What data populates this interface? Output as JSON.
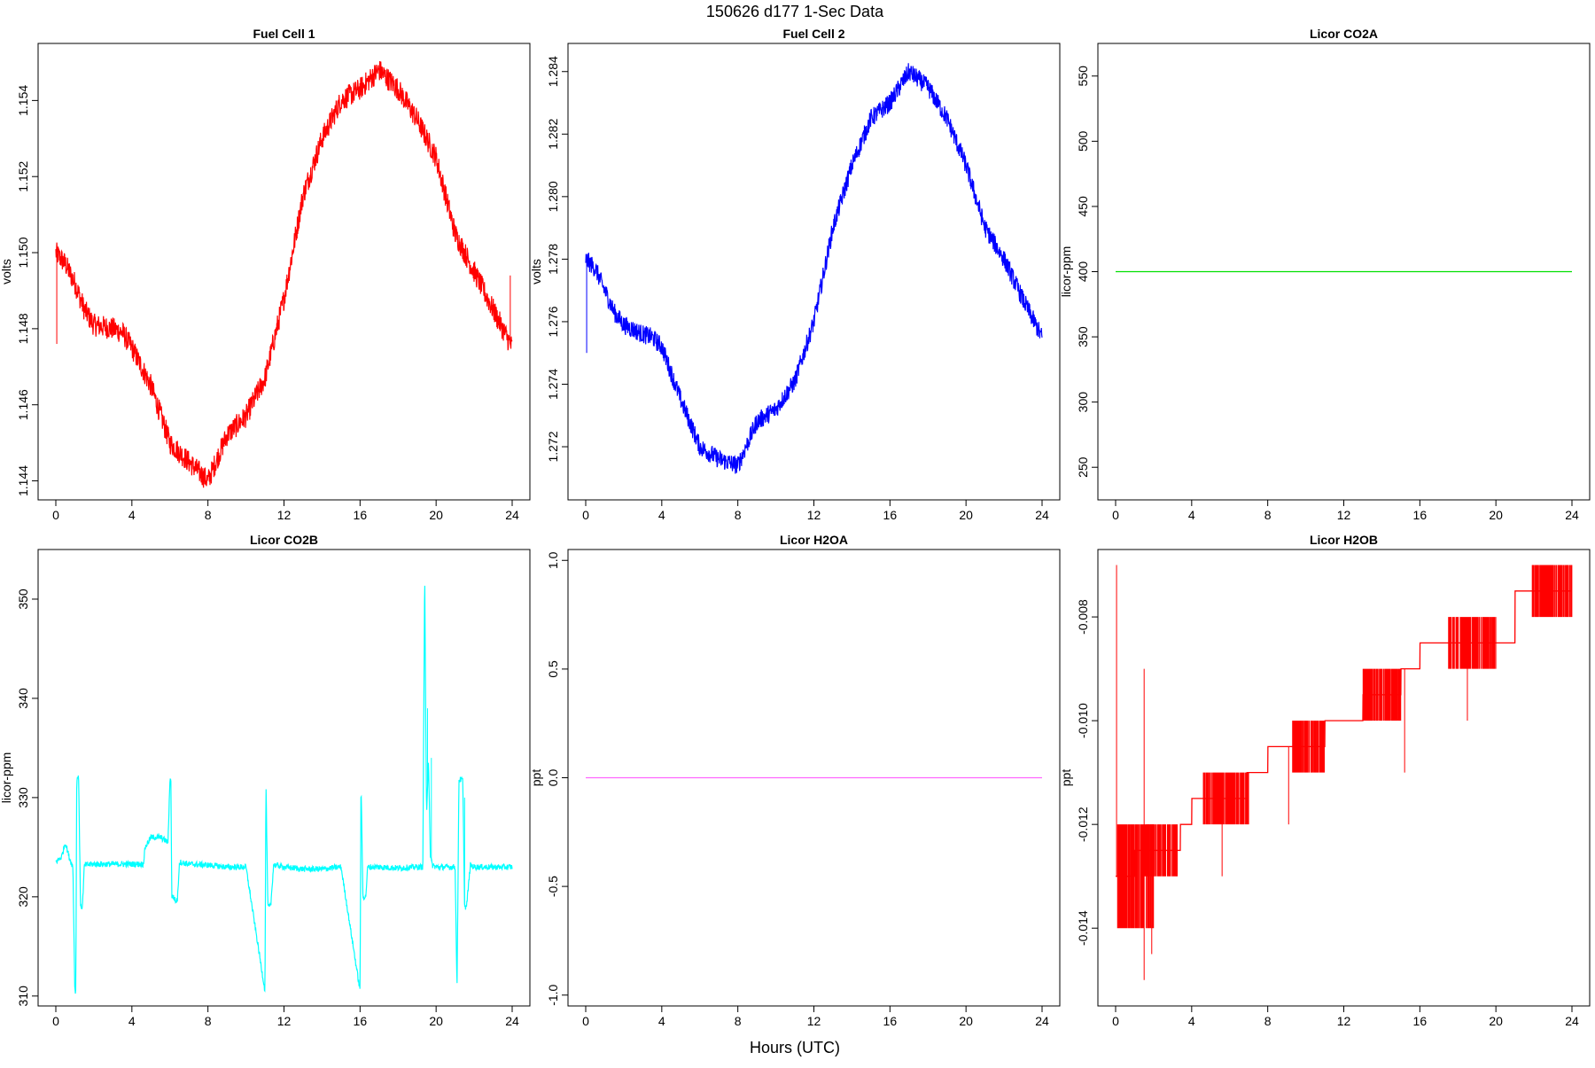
{
  "title": "150626   d177   1-Sec Data",
  "xlabel": "Hours (UTC)",
  "chart_data": [
    {
      "type": "line",
      "title": "Fuel Cell 1",
      "ylabel": "volts",
      "color": "#ff0000",
      "xlim": [
        0,
        24
      ],
      "ylim": [
        1.1435,
        1.1555
      ],
      "xticks": [
        0,
        4,
        8,
        12,
        16,
        20,
        24
      ],
      "yticks": [
        1.144,
        1.146,
        1.148,
        1.15,
        1.152,
        1.154
      ],
      "ytick_labels": [
        "1.144",
        "1.146",
        "1.148",
        "1.150",
        "1.152",
        "1.154"
      ],
      "noise": 0.0003,
      "x": [
        0,
        0.5,
        1,
        1.5,
        2,
        3,
        3.5,
        4,
        5,
        6,
        7,
        8,
        8.5,
        9,
        10,
        11,
        12,
        13,
        14,
        15,
        16,
        17,
        18,
        19,
        20,
        21,
        22,
        23,
        24
      ],
      "y": [
        1.15,
        1.1497,
        1.1492,
        1.1485,
        1.1481,
        1.148,
        1.1479,
        1.1475,
        1.1465,
        1.145,
        1.1445,
        1.144,
        1.1446,
        1.1452,
        1.1457,
        1.1467,
        1.1488,
        1.1515,
        1.153,
        1.154,
        1.1543,
        1.1548,
        1.1543,
        1.1535,
        1.1525,
        1.1505,
        1.1495,
        1.1485,
        1.1475
      ],
      "spikes": [
        {
          "x": 0.05,
          "y": 1.1476
        },
        {
          "x": 23.9,
          "y": 1.1494
        }
      ]
    },
    {
      "type": "line",
      "title": "Fuel Cell 2",
      "ylabel": "volts",
      "color": "#0000ff",
      "xlim": [
        0,
        24
      ],
      "ylim": [
        1.2703,
        1.2849
      ],
      "xticks": [
        0,
        4,
        8,
        12,
        16,
        20,
        24
      ],
      "yticks": [
        1.272,
        1.274,
        1.276,
        1.278,
        1.28,
        1.282,
        1.284
      ],
      "ytick_labels": [
        "1.272",
        "1.274",
        "1.276",
        "1.278",
        "1.280",
        "1.282",
        "1.284"
      ],
      "noise": 0.0003,
      "x": [
        0,
        0.5,
        1,
        1.5,
        2,
        3,
        3.5,
        4,
        5,
        6,
        7,
        8,
        8.5,
        9,
        10,
        11,
        12,
        13,
        14,
        15,
        16,
        17,
        18,
        19,
        20,
        21,
        22,
        23,
        24
      ],
      "y": [
        1.278,
        1.2777,
        1.277,
        1.2763,
        1.2759,
        1.2756,
        1.2755,
        1.2752,
        1.2735,
        1.272,
        1.2716,
        1.2714,
        1.2721,
        1.2728,
        1.2732,
        1.2741,
        1.276,
        1.279,
        1.281,
        1.2825,
        1.283,
        1.284,
        1.2835,
        1.2825,
        1.281,
        1.279,
        1.278,
        1.2767,
        1.2755
      ],
      "spikes": [
        {
          "x": 0.05,
          "y": 1.275
        }
      ]
    },
    {
      "type": "line",
      "title": "Licor CO2A",
      "ylabel": "licor-ppm",
      "color": "#00e000",
      "xlim": [
        0,
        24
      ],
      "ylim": [
        225,
        575
      ],
      "xticks": [
        0,
        4,
        8,
        12,
        16,
        20,
        24
      ],
      "yticks": [
        250,
        300,
        350,
        400,
        450,
        500,
        550
      ],
      "ytick_labels": [
        "250",
        "300",
        "350",
        "400",
        "450",
        "500",
        "550"
      ],
      "noise": 0,
      "x": [
        0,
        24
      ],
      "y": [
        400,
        400
      ],
      "spikes": []
    },
    {
      "type": "line",
      "title": "Licor CO2B",
      "ylabel": "licor-ppm",
      "color": "#00ffff",
      "xlim": [
        0,
        24
      ],
      "ylim": [
        309,
        355
      ],
      "xticks": [
        0,
        4,
        8,
        12,
        16,
        20,
        24
      ],
      "yticks": [
        310,
        320,
        330,
        340,
        350
      ],
      "ytick_labels": [
        "310",
        "320",
        "330",
        "340",
        "350"
      ],
      "noise": 0.3,
      "x": [
        0,
        0.3,
        0.5,
        0.7,
        0.9,
        1.0,
        1.05,
        1.1,
        1.2,
        1.3,
        1.4,
        1.5,
        2,
        3,
        4,
        4.6,
        4.7,
        5,
        5.5,
        5.9,
        6.0,
        6.05,
        6.1,
        6.2,
        6.3,
        6.4,
        6.5,
        7,
        8,
        9,
        10,
        11,
        11.05,
        11.15,
        11.3,
        11.45,
        11.5,
        12,
        13,
        14,
        15,
        16,
        16.05,
        16.15,
        16.3,
        16.4,
        17,
        18,
        19,
        19.3,
        19.4,
        19.45,
        19.5,
        19.6,
        19.7,
        19.8,
        20,
        21,
        21.1,
        21.2,
        21.4,
        21.5,
        21.6,
        21.8,
        22,
        23,
        24
      ],
      "y": [
        323.5,
        324,
        325.5,
        324,
        323,
        310.5,
        310.5,
        332,
        332,
        319,
        319,
        323.2,
        323.3,
        323.3,
        323.3,
        323.3,
        325,
        326,
        326,
        325.5,
        331.8,
        331.8,
        320,
        320,
        319.5,
        319.8,
        323.5,
        323.3,
        323.2,
        323.0,
        323.0,
        310.5,
        331.8,
        319,
        319,
        323.2,
        323.2,
        323.0,
        322.8,
        322.8,
        323.0,
        310.5,
        331.8,
        320,
        320,
        323.0,
        323.0,
        322.9,
        323.0,
        323.0,
        353,
        339,
        328,
        334,
        324,
        323.2,
        323.0,
        323.0,
        310.5,
        331.8,
        331.8,
        319,
        319,
        323.2,
        323.0,
        323.0,
        323.0
      ],
      "spikes": [
        {
          "x": 19.55,
          "y": 339
        },
        {
          "x": 19.75,
          "y": 334
        },
        {
          "x": 21.5,
          "y": 330
        }
      ]
    },
    {
      "type": "line",
      "title": "Licor H2OA",
      "ylabel": "ppt",
      "color": "#ff66ff",
      "xlim": [
        0,
        24
      ],
      "ylim": [
        -1.05,
        1.05
      ],
      "xticks": [
        0,
        4,
        8,
        12,
        16,
        20,
        24
      ],
      "yticks": [
        -1.0,
        -0.5,
        0.0,
        0.5,
        1.0
      ],
      "ytick_labels": [
        "-1.0",
        "-0.5",
        "0.0",
        "0.5",
        "1.0"
      ],
      "noise": 0,
      "x": [
        0,
        24
      ],
      "y": [
        0,
        0
      ],
      "spikes": []
    },
    {
      "type": "line",
      "title": "Licor H2OB",
      "ylabel": "ppt",
      "color": "#ff0000",
      "xlim": [
        0,
        24
      ],
      "ylim": [
        -0.0155,
        -0.0067
      ],
      "xticks": [
        0,
        4,
        8,
        12,
        16,
        20,
        24
      ],
      "yticks": [
        -0.014,
        -0.012,
        -0.01,
        -0.008
      ],
      "ytick_labels": [
        "-0.014",
        "-0.012",
        "-0.010",
        "-0.008"
      ],
      "noise": 0,
      "x": [
        0,
        1.0,
        1.01,
        3.4,
        3.41,
        4.0,
        4.01,
        6.9,
        6.91,
        8.0,
        8.01,
        11.0,
        11.01,
        13.0,
        13.01,
        15.0,
        15.01,
        16.0,
        16.01,
        21.0,
        21.01,
        24
      ],
      "y": [
        -0.013,
        -0.013,
        -0.0125,
        -0.0125,
        -0.012,
        -0.012,
        -0.0115,
        -0.0115,
        -0.011,
        -0.011,
        -0.0105,
        -0.0105,
        -0.01,
        -0.01,
        -0.0095,
        -0.0095,
        -0.009,
        -0.009,
        -0.0085,
        -0.0085,
        -0.0075,
        -0.0075
      ],
      "bands": [
        {
          "x0": 0.1,
          "x1": 2.0,
          "y0": -0.014,
          "y1": -0.012
        },
        {
          "x0": 1.5,
          "x1": 3.3,
          "y0": -0.013,
          "y1": -0.012
        },
        {
          "x0": 4.6,
          "x1": 7.0,
          "y0": -0.012,
          "y1": -0.011
        },
        {
          "x0": 9.3,
          "x1": 11.0,
          "y0": -0.011,
          "y1": -0.01
        },
        {
          "x0": 13.0,
          "x1": 15.0,
          "y0": -0.01,
          "y1": -0.009
        },
        {
          "x0": 17.5,
          "x1": 20.0,
          "y0": -0.009,
          "y1": -0.008
        },
        {
          "x0": 21.9,
          "x1": 24.0,
          "y0": -0.008,
          "y1": -0.007
        }
      ],
      "spikes": [
        {
          "x": 0.05,
          "y": -0.007
        },
        {
          "x": 1.5,
          "y": -0.009
        },
        {
          "x": 1.5,
          "y": -0.015
        },
        {
          "x": 1.9,
          "y": -0.0145
        },
        {
          "x": 5.6,
          "y": -0.013
        },
        {
          "x": 9.1,
          "y": -0.012
        },
        {
          "x": 18.5,
          "y": -0.01
        },
        {
          "x": 15.2,
          "y": -0.011
        }
      ]
    }
  ]
}
